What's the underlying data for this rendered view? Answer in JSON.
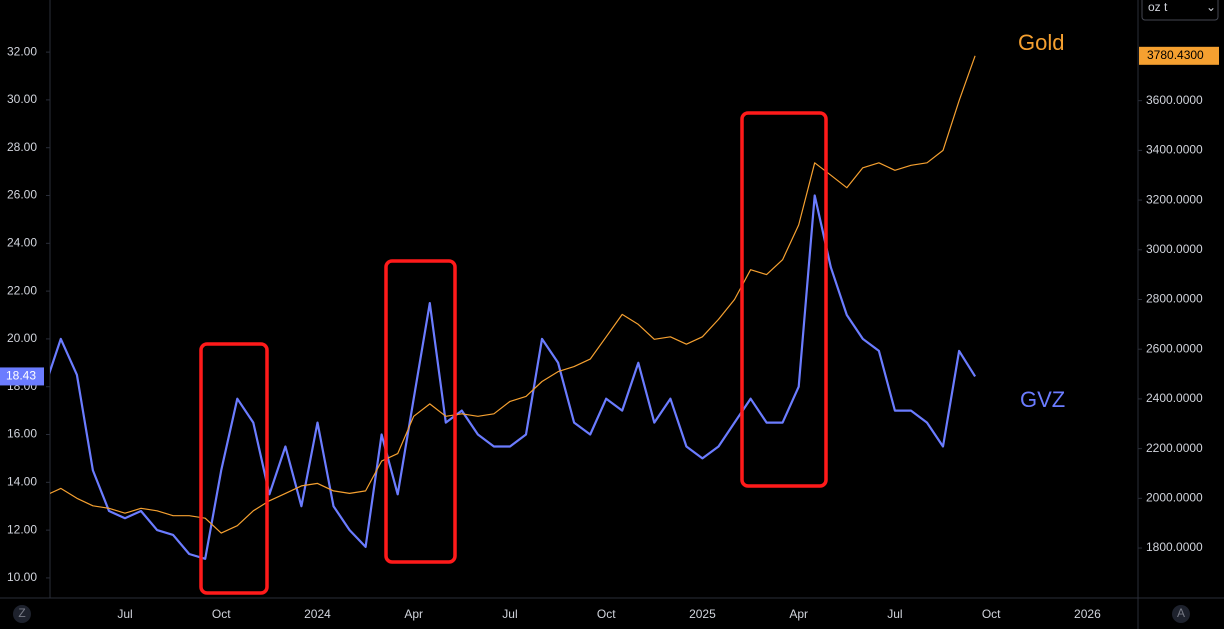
{
  "chart_data": {
    "type": "line",
    "categories": [
      null,
      null,
      null,
      null,
      null,
      "Jul",
      null,
      null,
      null,
      null,
      null,
      "Oct",
      null,
      null,
      null,
      null,
      null,
      "2024",
      null,
      null,
      null,
      null,
      null,
      "Apr",
      null,
      null,
      null,
      null,
      null,
      "Jul",
      null,
      null,
      null,
      null,
      null,
      "Oct",
      null,
      null,
      null,
      null,
      null,
      "2025",
      null,
      null,
      null,
      null,
      null,
      "Apr",
      null,
      null,
      null,
      null,
      null,
      "Jul",
      null,
      null,
      null,
      null,
      null,
      "Oct",
      null,
      null,
      null,
      null,
      null,
      "2026",
      null,
      null,
      null
    ],
    "series": [
      {
        "name": "GVZ",
        "color": "#6b7cff",
        "axis": "y",
        "values": [
          18,
          20,
          18.5,
          14.5,
          12.8,
          12.5,
          12.8,
          12,
          11.8,
          11,
          10.8,
          14.5,
          17.5,
          16.5,
          13.5,
          15.5,
          13,
          16.5,
          13,
          12,
          11.3,
          16,
          13.5,
          17.5,
          21.5,
          16.5,
          17,
          16,
          15.5,
          15.5,
          16,
          20,
          19,
          16.5,
          16,
          17.5,
          17,
          19,
          16.5,
          17.5,
          15.5,
          15,
          15.5,
          16.5,
          17.5,
          16.5,
          16.5,
          18,
          26,
          23,
          21,
          20,
          19.5,
          17,
          17,
          16.5,
          15.5,
          19.5,
          18.43,
          null,
          null,
          null,
          null,
          null,
          null,
          null,
          null,
          null,
          null
        ],
        "value_labels": [
          null,
          null,
          null,
          null,
          null,
          null,
          null,
          null,
          null,
          null,
          null,
          null,
          null,
          null,
          null,
          null,
          null,
          null,
          null,
          null,
          null,
          null,
          null,
          null,
          null,
          null,
          null,
          null,
          null,
          null,
          null,
          null,
          null,
          null,
          null,
          null,
          null,
          null,
          null,
          null,
          null,
          null,
          null,
          null,
          null,
          null,
          null,
          null,
          null,
          null,
          null,
          null,
          null,
          null,
          null,
          null,
          null,
          null,
          "18.43",
          null,
          null,
          null,
          null,
          null,
          null,
          null,
          null,
          null,
          null
        ]
      },
      {
        "name": "Gold",
        "color": "#f5a030",
        "axis": "y2",
        "values": [
          2010,
          2040,
          2000,
          1970,
          1960,
          1940,
          1960,
          1950,
          1930,
          1930,
          1920,
          1860,
          1890,
          1950,
          1990,
          2020,
          2050,
          2060,
          2030,
          2020,
          2030,
          2150,
          2180,
          2330,
          2380,
          2330,
          2340,
          2330,
          2340,
          2390,
          2410,
          2470,
          2510,
          2530,
          2560,
          2650,
          2740,
          2700,
          2640,
          2650,
          2620,
          2650,
          2720,
          2800,
          2920,
          2900,
          2960,
          3100,
          3350,
          3300,
          3250,
          3330,
          3350,
          3320,
          3340,
          3350,
          3400,
          3600,
          3780.43,
          null,
          null,
          null,
          null,
          null,
          null,
          null,
          null,
          null,
          null
        ],
        "value_labels": [
          null,
          null,
          null,
          null,
          null,
          null,
          null,
          null,
          null,
          null,
          null,
          null,
          null,
          null,
          null,
          null,
          null,
          null,
          null,
          null,
          null,
          null,
          null,
          null,
          null,
          null,
          null,
          null,
          null,
          null,
          null,
          null,
          null,
          null,
          null,
          null,
          null,
          null,
          null,
          null,
          null,
          null,
          null,
          null,
          null,
          null,
          null,
          null,
          null,
          null,
          null,
          null,
          null,
          null,
          null,
          null,
          null,
          null,
          "3780.4300",
          null,
          null,
          null,
          null,
          null,
          null,
          null,
          null,
          null,
          null
        ]
      }
    ],
    "ylim": [
      9.16,
      34.18
    ],
    "yticks": [
      {
        "value": 10,
        "label": "10.00"
      },
      {
        "value": 12,
        "label": "12.00"
      },
      {
        "value": 14,
        "label": "14.00"
      },
      {
        "value": 16,
        "label": "16.00"
      },
      {
        "value": 18,
        "label": "18.00"
      },
      {
        "value": 20,
        "label": "20.00"
      },
      {
        "value": 22,
        "label": "22.00"
      },
      {
        "value": 24,
        "label": "24.00"
      },
      {
        "value": 26,
        "label": "26.00"
      },
      {
        "value": 28,
        "label": "28.00"
      },
      {
        "value": 30,
        "label": "30.00"
      },
      {
        "value": 32,
        "label": "32.00"
      }
    ],
    "y2lim": [
      1599,
      4005
    ],
    "y2ticks": [
      {
        "value": 1800,
        "label": "1800.0000"
      },
      {
        "value": 2000,
        "label": "2000.0000"
      },
      {
        "value": 2200,
        "label": "2200.0000"
      },
      {
        "value": 2400,
        "label": "2400.0000"
      },
      {
        "value": 2600,
        "label": "2600.0000"
      },
      {
        "value": 2800,
        "label": "2800.0000"
      },
      {
        "value": 3000,
        "label": "3000.0000"
      },
      {
        "value": 3200,
        "label": "3200.0000"
      },
      {
        "value": 3400,
        "label": "3400.0000"
      },
      {
        "value": 3600,
        "label": "3600.0000"
      }
    ],
    "grid": false
  },
  "controls": {
    "unit": "oz t",
    "left_button": "Z",
    "right_button": "A"
  }
}
